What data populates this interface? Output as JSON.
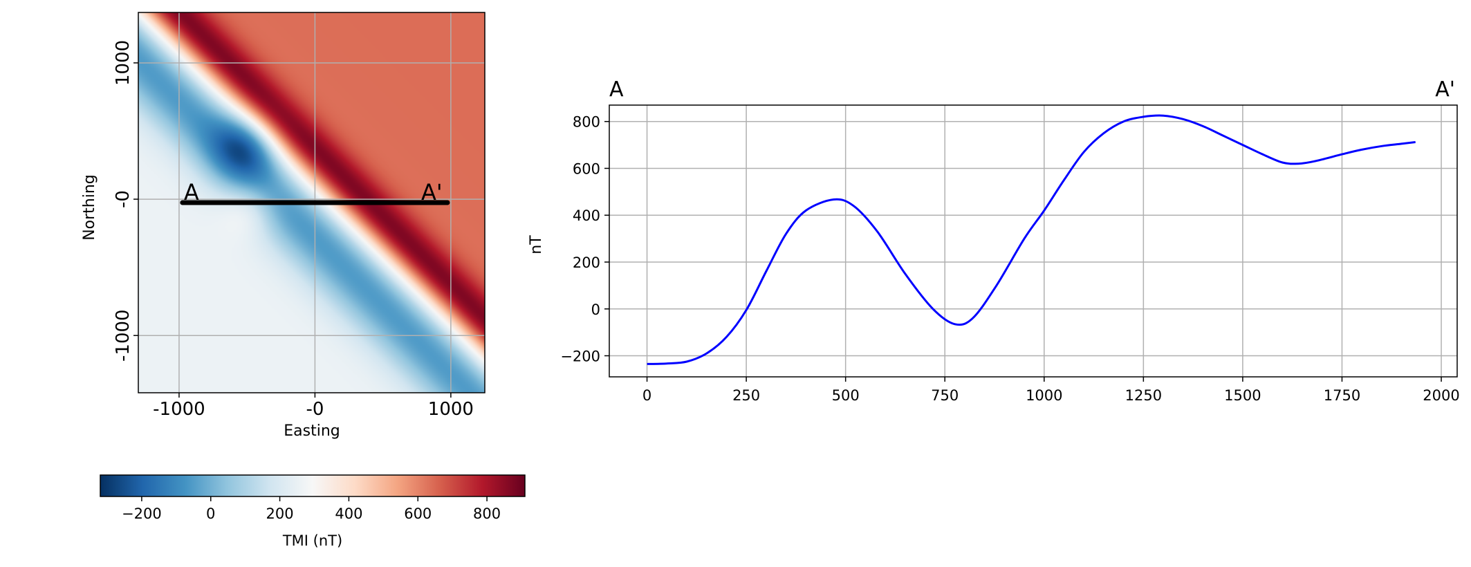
{
  "chart_data": [
    {
      "type": "heatmap",
      "title": "",
      "xlabel": "Easting",
      "ylabel": "Northing",
      "xlim": [
        -1300,
        1250
      ],
      "ylim": [
        -1420,
        1370
      ],
      "x_ticks": [
        -1000,
        0,
        1000
      ],
      "x_tick_labels": [
        "-1000",
        "-0",
        "1000"
      ],
      "y_ticks": [
        -1000,
        0,
        1000
      ],
      "y_tick_labels": [
        "-1000",
        "-0",
        "1000"
      ],
      "grid": true,
      "colormap": "RdBu_r",
      "colormap_colors": [
        "#053061",
        "#2166ac",
        "#4393c3",
        "#92c5de",
        "#d1e5f0",
        "#f7f7f7",
        "#fddbc7",
        "#f4a582",
        "#d6604d",
        "#b2182b",
        "#67001f"
      ],
      "value_range": [
        -320,
        910
      ],
      "profile": {
        "start": [
          -975,
          -25
        ],
        "end": [
          975,
          -25
        ],
        "start_label": "A",
        "end_label": "A'",
        "line_color": "#000000"
      },
      "colorbar": {
        "label": "TMI (nT)",
        "range": [
          -320,
          910
        ],
        "ticks": [
          -200,
          0,
          200,
          400,
          600,
          800
        ],
        "tick_labels": [
          "−200",
          "0",
          "200",
          "400",
          "600",
          "800"
        ]
      }
    },
    {
      "type": "line",
      "title": "",
      "xlabel": "",
      "ylabel": "nT",
      "xlim": [
        -95,
        2040
      ],
      "ylim": [
        -290,
        870
      ],
      "x_ticks": [
        0,
        250,
        500,
        750,
        1000,
        1250,
        1500,
        1750,
        2000
      ],
      "x_tick_labels": [
        "0",
        "250",
        "500",
        "750",
        "1000",
        "1250",
        "1500",
        "1750",
        "2000"
      ],
      "y_ticks": [
        -200,
        0,
        200,
        400,
        600,
        800
      ],
      "y_tick_labels": [
        "−200",
        "0",
        "200",
        "400",
        "600",
        "800"
      ],
      "grid": true,
      "left_label": "A",
      "right_label": "A'",
      "series": [
        {
          "color": "#0000ff",
          "x": [
            0,
            50,
            100,
            150,
            200,
            250,
            300,
            350,
            400,
            470,
            520,
            580,
            650,
            720,
            775,
            820,
            880,
            950,
            1000,
            1050,
            1100,
            1150,
            1200,
            1250,
            1300,
            1350,
            1400,
            1450,
            1500,
            1550,
            1600,
            1640,
            1680,
            1750,
            1800,
            1850,
            1900,
            1935
          ],
          "y": [
            -235,
            -233,
            -225,
            -190,
            -120,
            -5,
            160,
            320,
            420,
            467,
            440,
            330,
            150,
            0,
            -65,
            -40,
            100,
            300,
            420,
            550,
            670,
            750,
            800,
            820,
            825,
            810,
            780,
            740,
            700,
            660,
            625,
            620,
            630,
            660,
            680,
            695,
            705,
            712
          ]
        }
      ]
    }
  ]
}
